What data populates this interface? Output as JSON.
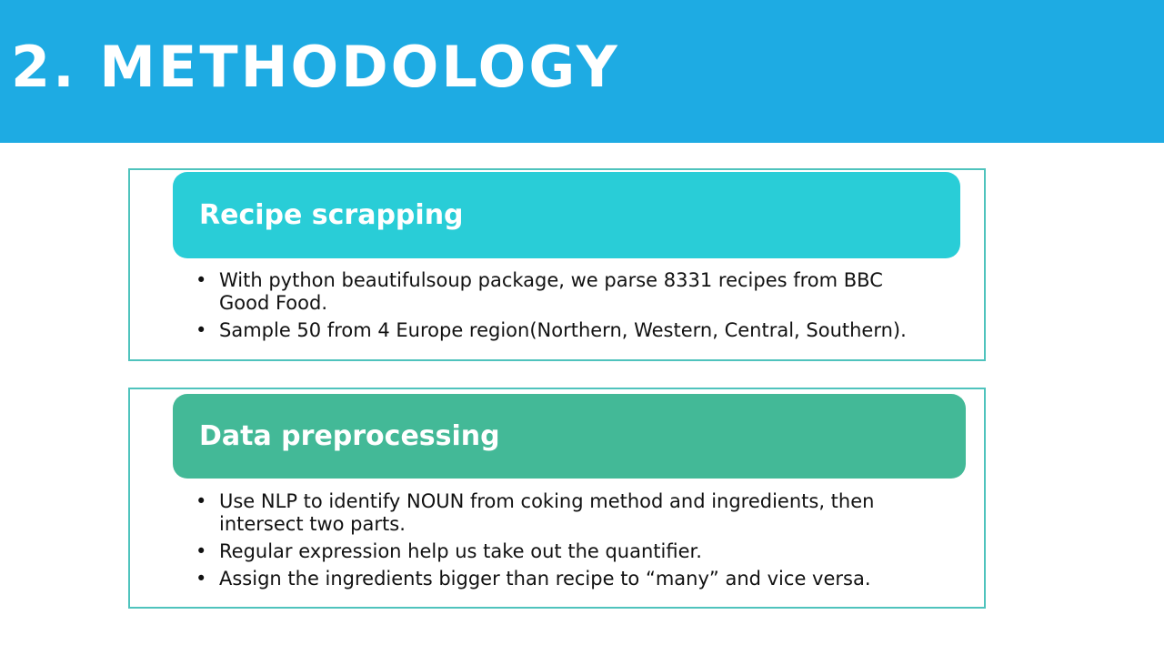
{
  "slide": {
    "title": "2. METHODOLOGY",
    "sections": [
      {
        "heading": "Recipe scrapping",
        "bullets": [
          "With python beautifulsoup package, we parse  8331 recipes from BBC Good Food.",
          "Sample 50 from 4 Europe region(Northern, Western, Central, Southern)."
        ]
      },
      {
        "heading": "Data preprocessing",
        "bullets": [
          "Use NLP to identify NOUN from coking method and ingredients, then intersect two parts.",
          "Regular expression help us take out the quantifier.",
          "Assign the ingredients bigger than recipe to “many” and vice versa."
        ]
      }
    ],
    "bullet_glyph": "•"
  },
  "colors": {
    "title_bar": "#1eabe3",
    "section_border": "#4fc3bd",
    "header_1": "#29cdd7",
    "header_2": "#43b997"
  }
}
